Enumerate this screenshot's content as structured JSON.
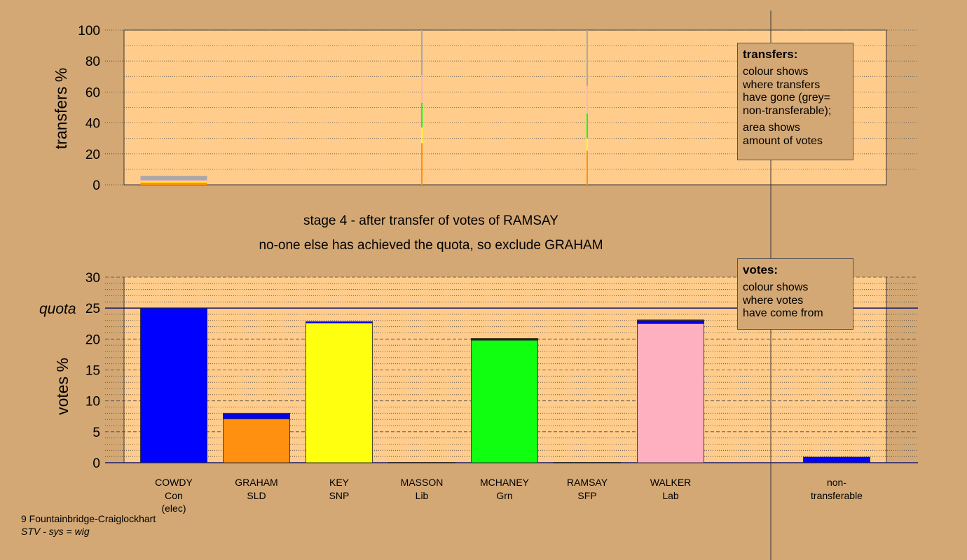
{
  "colors": {
    "background": "#d4a874",
    "plot_bg": "#ffcc8c",
    "Con": "#0000ff",
    "SLD": "#ff9010",
    "SNP": "#ffff10",
    "Lib": "#ff8c00",
    "Grn": "#10ff10",
    "SFP": "#808080",
    "Lab": "#ffb0c0",
    "nontransferable": "#a8a8a8"
  },
  "top_chart": {
    "ylabel": "transfers %",
    "yticks": [
      "0",
      "20",
      "40",
      "60",
      "80",
      "100"
    ]
  },
  "bottom_chart": {
    "ylabel": "votes %",
    "yticks": [
      "0",
      "5",
      "10",
      "15",
      "20",
      "25",
      "30"
    ],
    "quota_label": "quota"
  },
  "stage": {
    "line1": "stage 4 - after transfer of votes of RAMSAY",
    "line2": "no-one else has achieved the quota, so exclude GRAHAM"
  },
  "legend_transfers": {
    "title": "transfers:",
    "lines1": [
      "colour shows",
      "where transfers",
      "have gone (grey=",
      "non-transferable);"
    ],
    "lines2": [
      "area shows",
      "amount of votes"
    ]
  },
  "legend_votes": {
    "title": "votes:",
    "lines": [
      "colour shows",
      "where votes",
      "have come from"
    ]
  },
  "candidates": [
    {
      "name": "COWDY",
      "party": "Con",
      "note": "(elec)"
    },
    {
      "name": "GRAHAM",
      "party": "SLD",
      "note": ""
    },
    {
      "name": "KEY",
      "party": "SNP",
      "note": ""
    },
    {
      "name": "MASSON",
      "party": "Lib",
      "note": ""
    },
    {
      "name": "MCHANEY",
      "party": "Grn",
      "note": ""
    },
    {
      "name": "RAMSAY",
      "party": "SFP",
      "note": ""
    },
    {
      "name": "WALKER",
      "party": "Lab",
      "note": ""
    },
    {
      "name": "non-",
      "party": "transferable",
      "note": ""
    }
  ],
  "footer": {
    "line1": "9 Fountainbridge-Craiglockhart",
    "line2": "STV - sys = wig"
  },
  "chart_data": [
    {
      "type": "bar",
      "name": "transfers",
      "ylabel": "transfers %",
      "ylim": [
        0,
        100
      ],
      "categories": [
        "COWDY",
        "GRAHAM",
        "KEY",
        "MASSON",
        "MCHANEY",
        "RAMSAY",
        "WALKER",
        "non-transferable"
      ],
      "bars": [
        {
          "category": "COWDY",
          "width_fraction": 0.8,
          "segments": [
            {
              "party": "SLD",
              "value": 1.5
            },
            {
              "party": "SNP",
              "value": 0.6
            },
            {
              "party": "Lab",
              "value": 0.9
            },
            {
              "party": "nontransferable",
              "value": 2.8
            }
          ]
        },
        {
          "category": "MASSON",
          "width_fraction": 0.012,
          "segments": [
            {
              "party": "SLD",
              "value": 27
            },
            {
              "party": "SNP",
              "value": 10
            },
            {
              "party": "Grn",
              "value": 16
            },
            {
              "party": "Lab",
              "value": 18
            },
            {
              "party": "nontransferable",
              "value": 29
            }
          ]
        },
        {
          "category": "RAMSAY",
          "width_fraction": 0.012,
          "segments": [
            {
              "party": "SLD",
              "value": 22
            },
            {
              "party": "SNP",
              "value": 8
            },
            {
              "party": "Grn",
              "value": 16
            },
            {
              "party": "Lab",
              "value": 18
            },
            {
              "party": "nontransferable",
              "value": 36
            }
          ]
        }
      ]
    },
    {
      "type": "bar",
      "name": "votes",
      "ylabel": "votes %",
      "ylim": [
        0,
        30
      ],
      "quota": 25,
      "categories": [
        "COWDY",
        "GRAHAM",
        "KEY",
        "MASSON",
        "MCHANEY",
        "RAMSAY",
        "WALKER",
        "non-transferable"
      ],
      "bars": [
        {
          "category": "COWDY",
          "segments": [
            {
              "party": "Con",
              "value": 25
            }
          ]
        },
        {
          "category": "GRAHAM",
          "segments": [
            {
              "party": "SLD",
              "value": 7.1
            },
            {
              "party": "Con",
              "value": 0.8
            },
            {
              "party": "Lib",
              "value": 0.1
            }
          ]
        },
        {
          "category": "KEY",
          "segments": [
            {
              "party": "SNP",
              "value": 22.6
            },
            {
              "party": "Con",
              "value": 0.2
            }
          ]
        },
        {
          "category": "MASSON",
          "segments": [
            {
              "party": "Lib",
              "value": 0.05
            }
          ]
        },
        {
          "category": "MCHANEY",
          "segments": [
            {
              "party": "Grn",
              "value": 19.8
            },
            {
              "party": "Con",
              "value": 0.2
            },
            {
              "party": "Lib",
              "value": 0.1
            }
          ]
        },
        {
          "category": "RAMSAY",
          "segments": [
            {
              "party": "SFP",
              "value": 0.05
            }
          ]
        },
        {
          "category": "WALKER",
          "segments": [
            {
              "party": "Lab",
              "value": 22.5
            },
            {
              "party": "Con",
              "value": 0.5
            },
            {
              "party": "Lib",
              "value": 0.1
            }
          ]
        },
        {
          "category": "non-transferable",
          "segments": [
            {
              "party": "Con",
              "value": 0.9
            }
          ]
        }
      ]
    }
  ]
}
